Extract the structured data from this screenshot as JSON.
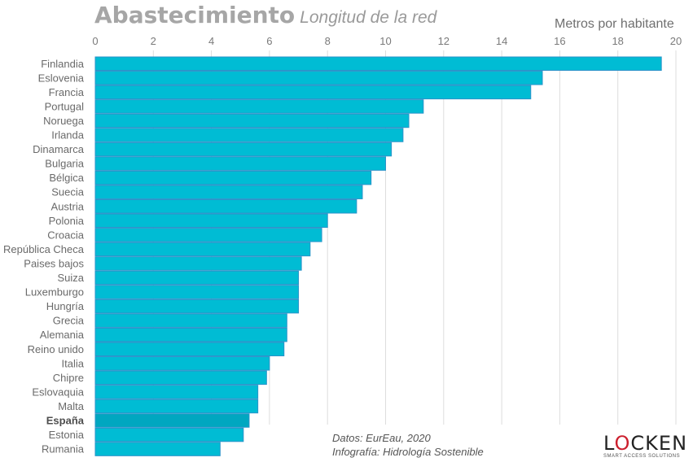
{
  "header": {
    "title": "Abastecimiento",
    "subtitle": "Longitud de la red",
    "unit_label": "Metros por habitante"
  },
  "footer": {
    "source_line1": "Datos: EurEau, 2020",
    "source_line2": "Infografía: Hidrología Sostenible"
  },
  "logo": {
    "brand_pre": "L",
    "brand_o": "O",
    "brand_post": "CKEN",
    "tagline": "SMART ACCESS SOLUTIONS"
  },
  "colors": {
    "bar": "#00bcd4",
    "bar_highlight": "#00a7c0",
    "bar_border": "#2a93c9",
    "grid": "#dddddd",
    "logo_accent": "#cc1f2d"
  },
  "chart_data": {
    "type": "bar",
    "orientation": "horizontal",
    "title": "Abastecimiento",
    "subtitle": "Longitud de la red",
    "xlabel": "Metros por habitante",
    "ylabel": "",
    "xlim": [
      0,
      20
    ],
    "xticks": [
      0,
      2,
      4,
      6,
      8,
      10,
      12,
      14,
      16,
      18,
      20
    ],
    "x_axis_position": "top",
    "grid": true,
    "highlight": "España",
    "categories": [
      "Finlandia",
      "Eslovenia",
      "Francia",
      "Portugal",
      "Noruega",
      "Irlanda",
      "Dinamarca",
      "Bulgaria",
      "Bélgica",
      "Suecia",
      "Austria",
      "Polonia",
      "Croacia",
      "República Checa",
      "Paises bajos",
      "Suiza",
      "Luxemburgo",
      "Hungría",
      "Grecia",
      "Alemania",
      "Reino unido",
      "Italia",
      "Chipre",
      "Eslovaquia",
      "Malta",
      "España",
      "Estonia",
      "Rumania"
    ],
    "values": [
      19.5,
      15.4,
      15.0,
      11.3,
      10.8,
      10.6,
      10.2,
      10.0,
      9.5,
      9.2,
      9.0,
      8.0,
      7.8,
      7.4,
      7.1,
      7.0,
      7.0,
      7.0,
      6.6,
      6.6,
      6.5,
      6.0,
      5.9,
      5.6,
      5.6,
      5.3,
      5.1,
      4.3
    ]
  }
}
